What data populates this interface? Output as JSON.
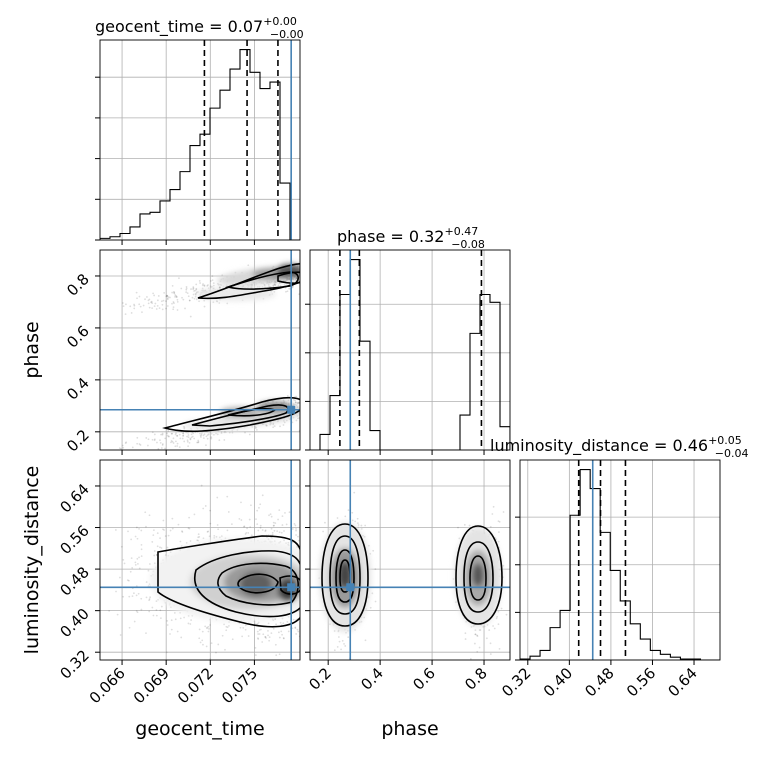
{
  "chart_data": [
    {
      "type": "histogram",
      "panel": "geocent_time marginal",
      "title": {
        "param": "geocent_time",
        "value": "0.07",
        "plus": "+0.00",
        "minus": "−0.00"
      },
      "xlim": [
        0.0645,
        0.0781
      ],
      "bins_from": 0.0645,
      "bin_width": 0.00068,
      "counts": [
        1,
        2,
        4,
        8,
        16,
        17,
        24,
        31,
        42,
        58,
        65,
        81,
        92,
        105,
        117,
        103,
        93,
        97,
        35,
        0
      ],
      "quantiles": [
        0.0716,
        0.0745,
        0.0766
      ],
      "truth": 0.0775,
      "grid": true
    },
    {
      "type": "scatter",
      "panel": "phase vs geocent_time",
      "xlim": [
        0.0645,
        0.0781
      ],
      "ylim": [
        0.13,
        0.9
      ],
      "ylabel": "phase",
      "yticks": [
        "0.2",
        "0.4",
        "0.6",
        "0.8"
      ],
      "truth": {
        "x": 0.0775,
        "y": 0.285
      },
      "grid": true
    },
    {
      "type": "histogram",
      "panel": "phase marginal",
      "title": {
        "param": "phase",
        "value": "0.32",
        "plus": "+0.47",
        "minus": "−0.08"
      },
      "xlim": [
        0.13,
        0.9
      ],
      "bins_from": 0.13,
      "bin_width": 0.0385,
      "counts": [
        0,
        8,
        28,
        80,
        98,
        56,
        10,
        0,
        0,
        0,
        0,
        0,
        0,
        0,
        0,
        18,
        60,
        80,
        76,
        12
      ],
      "quantiles": [
        0.245,
        0.32,
        0.79
      ],
      "truth": 0.285,
      "grid": true
    },
    {
      "type": "scatter",
      "panel": "luminosity_distance vs geocent_time",
      "xlim": [
        0.0645,
        0.0781
      ],
      "ylim": [
        0.305,
        0.69
      ],
      "xlabel": "geocent_time",
      "ylabel": "luminosity_distance",
      "xticks": [
        "0.066",
        "0.069",
        "0.072",
        "0.075"
      ],
      "yticks": [
        "0.32",
        "0.40",
        "0.48",
        "0.56",
        "0.64"
      ],
      "truth": {
        "x": 0.0775,
        "y": 0.445
      },
      "grid": true
    },
    {
      "type": "scatter",
      "panel": "luminosity_distance vs phase",
      "xlim": [
        0.13,
        0.9
      ],
      "ylim": [
        0.305,
        0.69
      ],
      "xlabel": "phase",
      "xticks": [
        "0.2",
        "0.4",
        "0.6",
        "0.8"
      ],
      "truth": {
        "x": 0.285,
        "y": 0.445
      },
      "grid": true
    },
    {
      "type": "histogram",
      "panel": "luminosity_distance marginal",
      "title": {
        "param": "luminosity_distance",
        "value": "0.46",
        "plus": "+0.05",
        "minus": "−0.04"
      },
      "xlim": [
        0.305,
        0.69
      ],
      "bins_from": 0.305,
      "bin_width": 0.0193,
      "counts": [
        0.5,
        2,
        5,
        17,
        26,
        76,
        100,
        90,
        67,
        47,
        31,
        19,
        11,
        5,
        3,
        1.5,
        0.5,
        0.5,
        0,
        0
      ],
      "quantiles": [
        0.418,
        0.46,
        0.508
      ],
      "truth": 0.445,
      "grid": true
    }
  ]
}
